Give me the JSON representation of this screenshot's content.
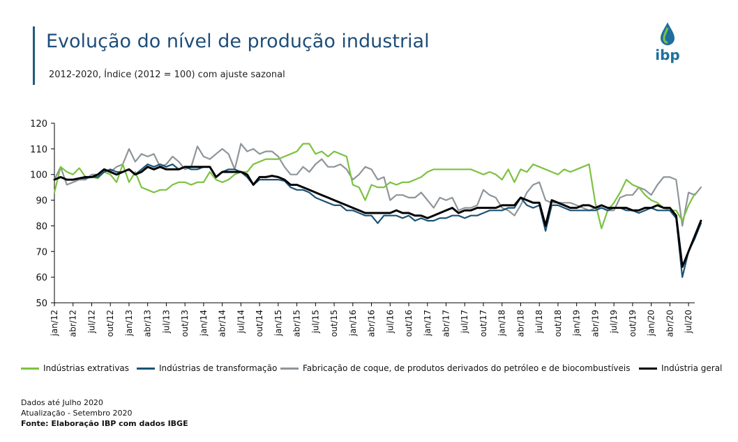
{
  "header": {
    "title": "Evolução do nível de produção industrial",
    "subtitle": "2012-2020, Índice (2012 = 100) com ajuste sazonal",
    "logo_text": "ibp"
  },
  "colors": {
    "accent": "#1f5c7a",
    "extrativas": "#7cc242",
    "transformacao": "#1a5276",
    "coque": "#8e9599",
    "geral": "#000000",
    "logo_blue": "#1f6f9e",
    "logo_green": "#7cc242"
  },
  "chart_data": {
    "type": "line",
    "title": "",
    "xlabel": "",
    "ylabel": "",
    "ylim": [
      50,
      120
    ],
    "yticks": [
      50,
      60,
      70,
      80,
      90,
      100,
      110,
      120
    ],
    "xtick_labels": [
      "jan/12",
      "abr/12",
      "jul/12",
      "out/12",
      "jan/13",
      "abr/13",
      "jul/13",
      "out/13",
      "jan/14",
      "abr/14",
      "jul/14",
      "out/14",
      "jan/15",
      "abr/15",
      "jul/15",
      "out/15",
      "jan/16",
      "abr/16",
      "jul/16",
      "out/16",
      "jan/17",
      "abr/17",
      "jul/17",
      "out/17",
      "jan/18",
      "abr/18",
      "jul/18",
      "out/18",
      "jan/19",
      "abr/19",
      "jul/19",
      "out/19",
      "jan/20",
      "abr/20",
      "jul/20"
    ],
    "grid": false,
    "legend_position": "bottom",
    "start": "jan/12",
    "end": "jul/20",
    "series": [
      {
        "name": "Indústrias extrativas",
        "color_key": "extrativas",
        "values": [
          93,
          103,
          101,
          100,
          102.5,
          99,
          99,
          98.5,
          101,
          100,
          97,
          104,
          97,
          101,
          95,
          94,
          93,
          94,
          94,
          96,
          97,
          97,
          96,
          97,
          97,
          101,
          98,
          97,
          98,
          100,
          101,
          101,
          104,
          105,
          106,
          106,
          106,
          107,
          108,
          109,
          112,
          112,
          108,
          109,
          107,
          109,
          108,
          107,
          96,
          95,
          90,
          96,
          95,
          95,
          97,
          96,
          97,
          97,
          98,
          99,
          101,
          102,
          102,
          102,
          102,
          102,
          102,
          102,
          101,
          100,
          101,
          100,
          98,
          102,
          97,
          102,
          101,
          104,
          103,
          102,
          101,
          100,
          102,
          101,
          102,
          103,
          104,
          89,
          79,
          86,
          89,
          93,
          98,
          96,
          95,
          92,
          90,
          89,
          87,
          86,
          86,
          82,
          88,
          92.5
        ]
      },
      {
        "name": "Indústrias de transformação",
        "color_key": "transformacao",
        "values": [
          98,
          99,
          98,
          98,
          98.5,
          98.5,
          99,
          99,
          101,
          102,
          101,
          101,
          102,
          100,
          102,
          104,
          103,
          104,
          103,
          104,
          102,
          103,
          102,
          102,
          103,
          103,
          99,
          101,
          102,
          102,
          101,
          99,
          96,
          98,
          98,
          98,
          98,
          97.5,
          95,
          94,
          94,
          93,
          91,
          90,
          89,
          88,
          88,
          86,
          86,
          85,
          84,
          84,
          81,
          84,
          84,
          84,
          83,
          84,
          82,
          83,
          82,
          82,
          83,
          83,
          84,
          84,
          83,
          84,
          84,
          85,
          86,
          86,
          86,
          87,
          87,
          91,
          88,
          87,
          88,
          78,
          88,
          88,
          87,
          86,
          86,
          86,
          86,
          86,
          87,
          86,
          87,
          87,
          86,
          86,
          85,
          86,
          87,
          86,
          86,
          86,
          83,
          60,
          70,
          75,
          81
        ]
      },
      {
        "name": "Fabricação de coque, de produtos derivados do petróleo e de biocombustíveis",
        "color_key": "coque",
        "values": [
          98,
          103,
          96,
          97,
          98,
          98,
          100,
          100,
          102,
          101,
          103,
          104,
          110,
          105,
          108,
          107,
          108,
          103,
          104,
          107,
          105,
          102,
          103,
          111,
          107,
          106,
          108,
          110,
          108,
          102,
          112,
          109,
          110,
          108,
          109,
          109,
          107,
          103,
          100,
          100,
          103,
          101,
          104,
          106,
          103,
          103,
          104,
          102,
          98,
          100,
          103,
          102,
          98,
          99,
          90,
          92,
          92,
          91,
          91,
          93,
          90,
          87,
          91,
          90,
          91,
          86,
          87,
          87,
          88,
          94,
          92,
          91,
          87,
          86,
          84,
          88,
          93,
          96,
          97,
          90,
          89,
          89,
          89,
          89,
          88,
          87,
          86,
          87,
          87,
          86,
          86,
          91,
          92,
          92,
          95,
          94,
          92,
          96,
          99,
          99,
          98,
          80,
          93,
          92,
          95
        ]
      },
      {
        "name": "Indústria geral",
        "color_key": "geral",
        "values": [
          98,
          99,
          98,
          98,
          98.5,
          99,
          99,
          100,
          102,
          101,
          100,
          101,
          102,
          100,
          101,
          103,
          102,
          103,
          102,
          102,
          102,
          103,
          103,
          103,
          103,
          103,
          99,
          101,
          101,
          101,
          101,
          100,
          96,
          99,
          99,
          99.5,
          99,
          98,
          96,
          96,
          95,
          94,
          93,
          92,
          91,
          90,
          89,
          88,
          87,
          86,
          85,
          85,
          85,
          85,
          85,
          86,
          85,
          85,
          84,
          84,
          83,
          84,
          85,
          86,
          87,
          85,
          86,
          86,
          87,
          87,
          87,
          87,
          88,
          88,
          88,
          91,
          90,
          89,
          89,
          80,
          90,
          89,
          88,
          87,
          87,
          88,
          88,
          87,
          88,
          87,
          87,
          87,
          87,
          86,
          86,
          87,
          87,
          88,
          87,
          87,
          84,
          64,
          70,
          76,
          82
        ]
      }
    ]
  },
  "notes": {
    "line1": "Dados até Julho 2020",
    "line2": "Atualização - Setembro 2020",
    "source": "Fonte: Elaboração IBP com dados IBGE"
  }
}
